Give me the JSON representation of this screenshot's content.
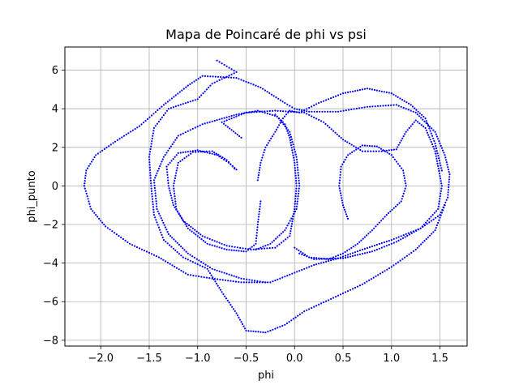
{
  "chart_data": {
    "type": "scatter",
    "title": "Mapa de Poincaré de phi vs psi",
    "xlabel": "phi",
    "ylabel": "phi_punto",
    "xlim": [
      -2.37,
      1.78
    ],
    "ylim": [
      -8.3,
      7.2
    ],
    "x_ticks": [
      -2.0,
      -1.5,
      -1.0,
      -0.5,
      0.0,
      0.5,
      1.0,
      1.5
    ],
    "x_tick_labels": [
      "−2.0",
      "−1.5",
      "−1.0",
      "−0.5",
      "0.0",
      "0.5",
      "1.0",
      "1.5"
    ],
    "y_ticks": [
      -8,
      -6,
      -4,
      -2,
      0,
      2,
      4,
      6
    ],
    "y_tick_labels": [
      "−8",
      "−6",
      "−4",
      "−2",
      "0",
      "2",
      "4",
      "6"
    ],
    "grid": true,
    "marker_color": "#0000ff",
    "series": [
      {
        "values": [
          [
            -2.17,
            0.0
          ],
          [
            -2.15,
            0.8
          ],
          [
            -2.05,
            1.6
          ],
          [
            -1.85,
            2.3
          ],
          [
            -1.6,
            3.1
          ],
          [
            -1.35,
            4.2
          ],
          [
            -1.1,
            5.2
          ],
          [
            -0.95,
            5.7
          ],
          [
            -0.6,
            5.6
          ],
          [
            -0.35,
            5.1
          ],
          [
            -0.1,
            4.3
          ],
          [
            0.0,
            4.0
          ],
          [
            0.15,
            3.85
          ],
          [
            0.45,
            3.85
          ],
          [
            0.75,
            4.1
          ],
          [
            1.05,
            4.2
          ],
          [
            1.25,
            3.8
          ],
          [
            1.45,
            2.8
          ],
          [
            1.55,
            1.6
          ],
          [
            1.6,
            0.6
          ],
          [
            1.58,
            -0.6
          ],
          [
            1.5,
            -1.5
          ],
          [
            1.3,
            -2.2
          ],
          [
            1.0,
            -2.8
          ],
          [
            0.7,
            -3.3
          ],
          [
            0.45,
            -3.75
          ],
          [
            0.2,
            -4.1
          ],
          [
            0.0,
            -4.5
          ],
          [
            -0.25,
            -5.0
          ],
          [
            -0.55,
            -5.0
          ],
          [
            -0.85,
            -4.8
          ],
          [
            -1.1,
            -4.6
          ],
          [
            -1.4,
            -3.7
          ],
          [
            -1.7,
            -3.0
          ],
          [
            -1.95,
            -2.1
          ],
          [
            -2.1,
            -1.2
          ],
          [
            -2.17,
            0.0
          ]
        ]
      },
      {
        "values": [
          [
            -0.8,
            6.5
          ],
          [
            -0.7,
            6.2
          ],
          [
            -0.6,
            5.9
          ],
          [
            -0.85,
            5.3
          ],
          [
            -1.0,
            4.5
          ],
          [
            -1.3,
            4.0
          ],
          [
            -1.45,
            3.0
          ],
          [
            -1.5,
            1.5
          ],
          [
            -1.48,
            0.0
          ],
          [
            -1.45,
            -1.5
          ],
          [
            -1.35,
            -2.8
          ],
          [
            -1.15,
            -3.7
          ],
          [
            -0.9,
            -4.3
          ],
          [
            -0.75,
            -5.5
          ],
          [
            -0.6,
            -6.6
          ],
          [
            -0.5,
            -7.5
          ],
          [
            -0.3,
            -7.6
          ],
          [
            -0.1,
            -7.2
          ],
          [
            0.1,
            -6.5
          ],
          [
            0.4,
            -5.8
          ],
          [
            0.7,
            -5.1
          ],
          [
            1.0,
            -4.2
          ],
          [
            1.25,
            -3.3
          ],
          [
            1.45,
            -2.3
          ],
          [
            1.55,
            -1.0
          ]
        ]
      },
      {
        "values": [
          [
            -0.6,
            0.85
          ],
          [
            -0.68,
            1.2
          ],
          [
            -0.8,
            1.6
          ],
          [
            -1.0,
            1.85
          ],
          [
            -1.2,
            1.7
          ],
          [
            -1.32,
            1.0
          ],
          [
            -1.3,
            0.0
          ],
          [
            -1.25,
            -1.0
          ],
          [
            -1.15,
            -1.8
          ],
          [
            -0.95,
            -2.6
          ],
          [
            -0.7,
            -3.1
          ],
          [
            -0.45,
            -3.3
          ],
          [
            -0.2,
            -3.2
          ],
          [
            -0.05,
            -2.6
          ],
          [
            0.0,
            -1.2
          ],
          [
            0.02,
            0.0
          ],
          [
            0.0,
            1.2
          ],
          [
            -0.05,
            2.5
          ],
          [
            -0.1,
            3.2
          ],
          [
            -0.2,
            3.7
          ]
        ]
      },
      {
        "values": [
          [
            -0.55,
            2.5
          ],
          [
            -0.75,
            3.3
          ],
          [
            -0.5,
            3.8
          ],
          [
            -0.2,
            3.9
          ],
          [
            0.1,
            3.8
          ],
          [
            0.3,
            3.3
          ],
          [
            0.5,
            2.4
          ],
          [
            0.7,
            1.8
          ],
          [
            0.9,
            1.8
          ],
          [
            1.05,
            1.9
          ],
          [
            1.15,
            2.8
          ],
          [
            1.25,
            3.4
          ],
          [
            1.35,
            3.0
          ],
          [
            1.45,
            1.8
          ],
          [
            1.52,
            0.0
          ],
          [
            1.48,
            -1.2
          ],
          [
            1.3,
            -2.2
          ],
          [
            1.05,
            -2.9
          ],
          [
            0.8,
            -3.4
          ],
          [
            0.5,
            -3.75
          ],
          [
            0.2,
            -3.8
          ],
          [
            0.05,
            -3.5
          ]
        ]
      },
      {
        "values": [
          [
            0.55,
            -1.7
          ],
          [
            0.5,
            -1.0
          ],
          [
            0.46,
            0.0
          ],
          [
            0.48,
            1.0
          ],
          [
            0.55,
            1.6
          ],
          [
            0.7,
            2.1
          ],
          [
            0.85,
            2.05
          ],
          [
            1.0,
            1.6
          ],
          [
            1.12,
            0.8
          ],
          [
            1.15,
            0.0
          ],
          [
            1.1,
            -0.8
          ],
          [
            0.95,
            -1.5
          ],
          [
            0.8,
            -2.3
          ],
          [
            0.65,
            -3.0
          ],
          [
            0.5,
            -3.5
          ],
          [
            0.35,
            -3.8
          ],
          [
            0.15,
            -3.7
          ],
          [
            0.0,
            -3.2
          ]
        ]
      },
      {
        "values": [
          [
            -0.4,
            -3.3
          ],
          [
            -0.25,
            -3.0
          ],
          [
            -0.1,
            -2.3
          ],
          [
            0.02,
            -1.2
          ],
          [
            0.05,
            0.0
          ],
          [
            0.02,
            1.5
          ],
          [
            -0.05,
            2.8
          ],
          [
            -0.18,
            3.6
          ],
          [
            -0.38,
            3.9
          ],
          [
            -0.6,
            3.7
          ],
          [
            -0.95,
            3.2
          ],
          [
            -1.2,
            2.6
          ],
          [
            -1.35,
            1.5
          ],
          [
            -1.45,
            0.3
          ],
          [
            -1.42,
            -1.2
          ],
          [
            -1.3,
            -2.5
          ],
          [
            -1.1,
            -3.5
          ],
          [
            -0.85,
            -4.3
          ],
          [
            -0.55,
            -4.8
          ],
          [
            -0.3,
            -5.0
          ]
        ]
      },
      {
        "values": [
          [
            -0.38,
            0.3
          ],
          [
            -0.35,
            1.2
          ],
          [
            -0.3,
            2.0
          ],
          [
            -0.2,
            2.8
          ],
          [
            -0.12,
            3.5
          ],
          [
            -0.05,
            3.9
          ],
          [
            0.05,
            3.8
          ],
          [
            0.25,
            4.3
          ],
          [
            0.5,
            4.8
          ],
          [
            0.75,
            5.05
          ],
          [
            1.0,
            4.8
          ],
          [
            1.2,
            4.2
          ],
          [
            1.35,
            3.5
          ],
          [
            1.45,
            2.2
          ],
          [
            1.52,
            0.8
          ]
        ]
      },
      {
        "values": [
          [
            -0.35,
            -0.8
          ],
          [
            -0.38,
            -2.0
          ],
          [
            -0.4,
            -3.0
          ],
          [
            -0.5,
            -3.4
          ],
          [
            -0.7,
            -3.3
          ],
          [
            -0.9,
            -3.0
          ],
          [
            -1.1,
            -2.2
          ],
          [
            -1.22,
            -1.2
          ],
          [
            -1.25,
            0.0
          ],
          [
            -1.2,
            1.2
          ],
          [
            -1.05,
            1.75
          ],
          [
            -0.85,
            1.8
          ],
          [
            -0.7,
            1.35
          ],
          [
            -0.62,
            0.9
          ]
        ]
      }
    ]
  }
}
